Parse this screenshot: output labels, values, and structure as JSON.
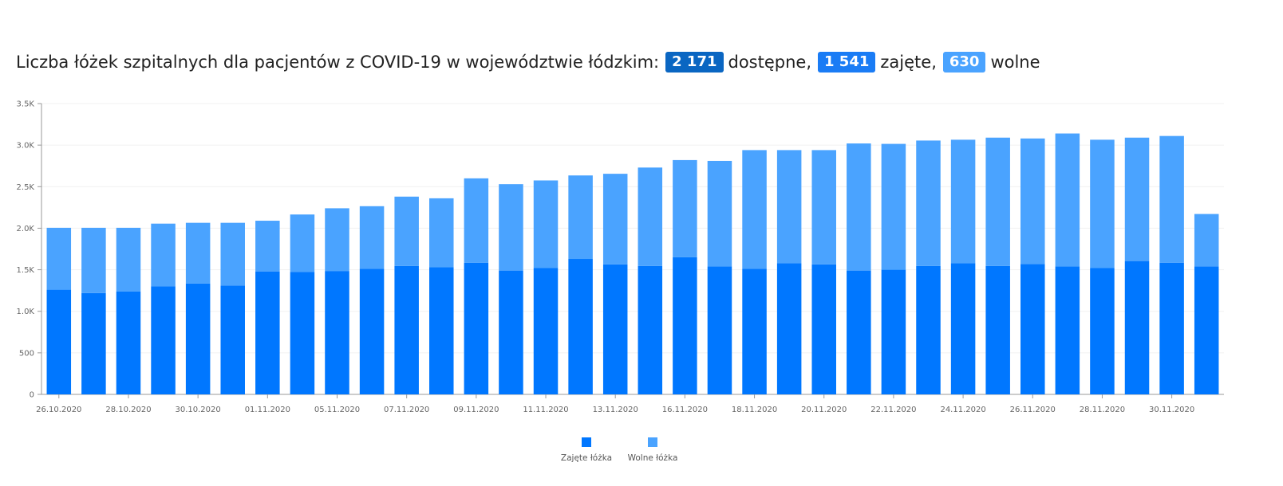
{
  "header": {
    "title_prefix": "Liczba łóżek szpitalnych dla pacjentów z COVID-19 w województwie łódzkim:",
    "available_value": "2 171",
    "available_label": "dostępne,",
    "occupied_value": "1 541",
    "occupied_label": "zajęte,",
    "free_value": "630",
    "free_label": "wolne",
    "colors": {
      "available": "#0a66c2",
      "occupied": "#1a7cf5",
      "free": "#4aa3ff"
    }
  },
  "chart_data": {
    "type": "bar",
    "stacked": true,
    "categories": [
      "26.10.2020",
      "27.10.2020",
      "28.10.2020",
      "29.10.2020",
      "30.10.2020",
      "31.10.2020",
      "01.11.2020",
      "02.11.2020",
      "05.11.2020",
      "06.11.2020",
      "07.11.2020",
      "08.11.2020",
      "09.11.2020",
      "10.11.2020",
      "11.11.2020",
      "12.11.2020",
      "13.11.2020",
      "14.11.2020",
      "16.11.2020",
      "17.11.2020",
      "18.11.2020",
      "19.11.2020",
      "20.11.2020",
      "21.11.2020",
      "22.11.2020",
      "23.11.2020",
      "24.11.2020",
      "25.11.2020",
      "26.11.2020",
      "27.11.2020",
      "28.11.2020",
      "29.11.2020",
      "30.11.2020",
      "01.12.2020"
    ],
    "x_tick_labels": [
      "26.10.2020",
      "",
      "28.10.2020",
      "",
      "30.10.2020",
      "",
      "01.11.2020",
      "",
      "05.11.2020",
      "",
      "07.11.2020",
      "",
      "09.11.2020",
      "",
      "11.11.2020",
      "",
      "13.11.2020",
      "",
      "16.11.2020",
      "",
      "18.11.2020",
      "",
      "20.11.2020",
      "",
      "22.11.2020",
      "",
      "24.11.2020",
      "",
      "26.11.2020",
      "",
      "28.11.2020",
      "",
      "30.11.2020",
      ""
    ],
    "series": [
      {
        "name": "Zajęte łóżka",
        "color": "#0077ff",
        "values": [
          1260,
          1220,
          1240,
          1300,
          1335,
          1310,
          1480,
          1475,
          1485,
          1510,
          1545,
          1530,
          1585,
          1490,
          1520,
          1630,
          1565,
          1545,
          1650,
          1540,
          1510,
          1580,
          1565,
          1490,
          1500,
          1545,
          1580,
          1545,
          1570,
          1540,
          1520,
          1605,
          1585,
          1541
        ]
      },
      {
        "name": "Wolne łóżka",
        "color": "#4aa3ff",
        "values": [
          745,
          785,
          765,
          755,
          730,
          755,
          610,
          690,
          755,
          755,
          835,
          830,
          1015,
          1040,
          1055,
          1005,
          1090,
          1185,
          1170,
          1270,
          1430,
          1360,
          1375,
          1530,
          1515,
          1510,
          1485,
          1545,
          1510,
          1600,
          1545,
          1485,
          1525,
          630
        ]
      }
    ],
    "y_ticks": [
      0,
      500,
      1000,
      1500,
      2000,
      2500,
      3000,
      3500
    ],
    "y_tick_labels": [
      "0",
      "500",
      "1.0K",
      "1.5K",
      "2.0K",
      "2.5K",
      "3.0K",
      "3.5K"
    ],
    "ylim": [
      0,
      3500
    ],
    "grid": true,
    "legend_position": "bottom-center"
  }
}
